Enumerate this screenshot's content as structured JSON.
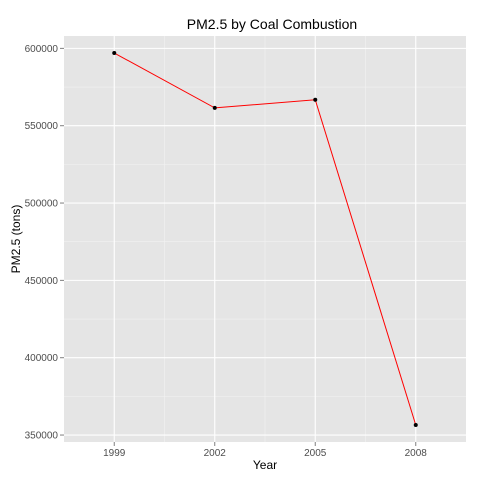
{
  "chart_data": {
    "type": "line",
    "title": "PM2.5 by Coal Combustion",
    "xlabel": "Year",
    "ylabel": "PM2.5 (tons)",
    "x": [
      1999,
      2002,
      2005,
      2008
    ],
    "series": [
      {
        "values": [
          597000,
          561500,
          566800,
          356500
        ]
      }
    ],
    "xlim": [
      1997.5,
      2009.5
    ],
    "ylim": [
      345500,
      608000
    ],
    "y_ticks": [
      350000,
      400000,
      450000,
      500000,
      550000,
      600000
    ],
    "y_tick_labels": [
      "350000",
      "400000",
      "450000",
      "500000",
      "550000",
      "600000"
    ],
    "x_ticks": [
      1999,
      2002,
      2005,
      2008
    ],
    "x_tick_labels": [
      "1999",
      "2002",
      "2005",
      "2008"
    ],
    "grid": true,
    "line_color": "#ff0000",
    "point_color": "#000000",
    "panel_color": "#e5e5e5",
    "grid_color": "#ffffff"
  }
}
